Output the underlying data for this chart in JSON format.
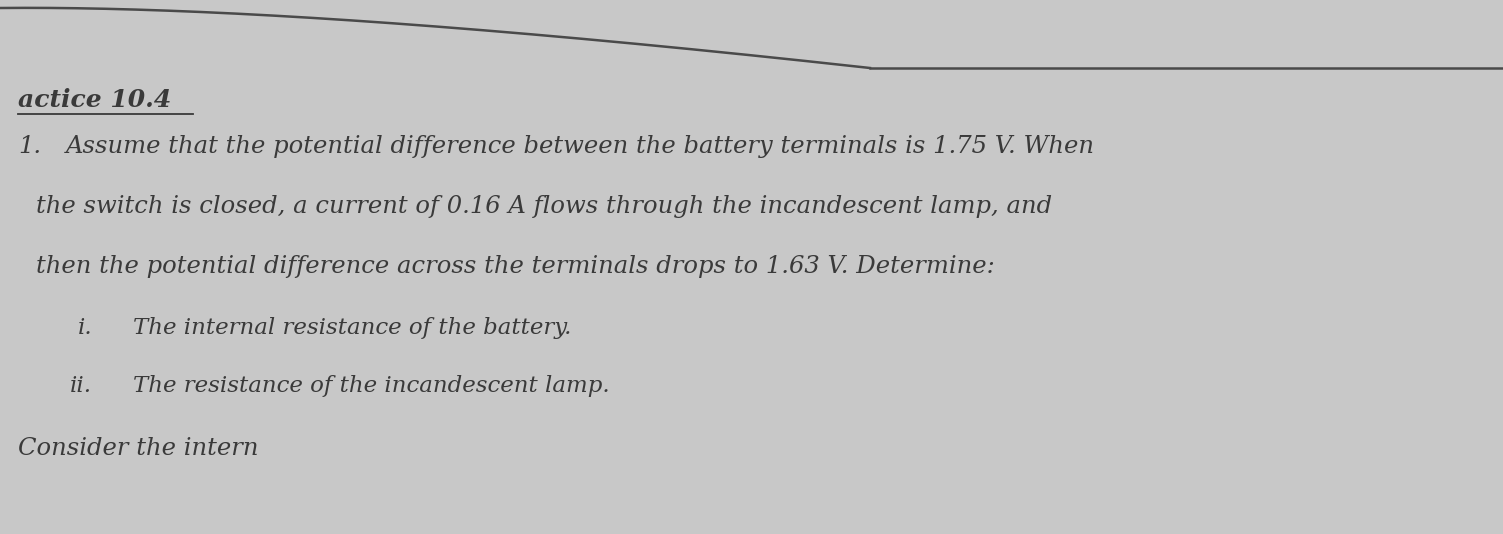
{
  "bg_color": "#c8c8c8",
  "title": "actice 10.4",
  "title_fontsize": 17,
  "question_number": "1.",
  "body_text_line1": "Assume that the potential difference between the battery terminals is 1.75 V. When",
  "body_text_line2": "the switch is closed, a current of 0.16 A flows through the incandescent lamp, and",
  "body_text_line3": "then the potential difference across the terminals drops to 1.63 V. Determine:",
  "sub_i_label": "i.",
  "sub_i_text": "The internal resistance of the battery.",
  "sub_ii_label": "ii.",
  "sub_ii_text": "The resistance of the incandescent lamp.",
  "footer_text": "Consider the intern",
  "text_color": "#3a3a3a",
  "font_size_body": 17.5,
  "font_size_sub": 16.5,
  "font_size_title": 18
}
